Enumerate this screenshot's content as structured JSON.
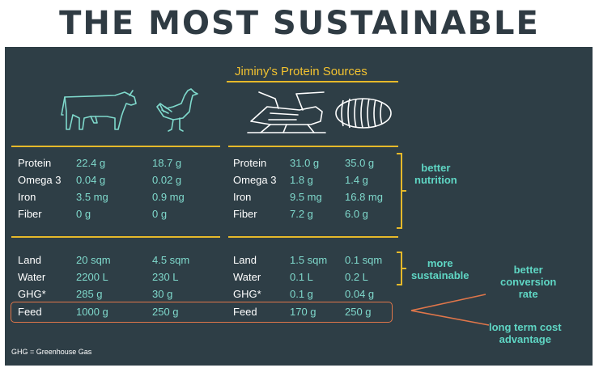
{
  "title": "THE MOST SUSTAINABLE",
  "header": "Jiminy's Protein Sources",
  "icons": [
    "cow-icon",
    "chicken-icon",
    "cricket-icon",
    "mealworm-icon"
  ],
  "nutrition": {
    "left": [
      {
        "label": "Protein",
        "cow": "22.4 g",
        "chicken": "18.7 g"
      },
      {
        "label": "Omega 3",
        "cow": "0.04 g",
        "chicken": "0.02 g"
      },
      {
        "label": "Iron",
        "cow": "3.5 mg",
        "chicken": "0.9 mg"
      },
      {
        "label": "Fiber",
        "cow": "0 g",
        "chicken": "0 g"
      }
    ],
    "right": [
      {
        "label": "Protein",
        "cricket": "31.0 g",
        "worm": "35.0 g"
      },
      {
        "label": "Omega 3",
        "cricket": "1.8 g",
        "worm": "1.4  g"
      },
      {
        "label": "Iron",
        "cricket": "9.5 mg",
        "worm": "16.8 mg"
      },
      {
        "label": "Fiber",
        "cricket": "7.2 g",
        "worm": "6.0 g"
      }
    ]
  },
  "sustainability": {
    "left": [
      {
        "label": "Land",
        "cow": "20 sqm",
        "chicken": "4.5 sqm"
      },
      {
        "label": "Water",
        "cow": "2200 L",
        "chicken": "230 L"
      },
      {
        "label": "GHG*",
        "cow": "285 g",
        "chicken": "30 g"
      },
      {
        "label": "Feed",
        "cow": "1000 g",
        "chicken": "250 g"
      }
    ],
    "right": [
      {
        "label": "Land",
        "cricket": "1.5 sqm",
        "worm": "0.1 sqm"
      },
      {
        "label": "Water",
        "cricket": "0.1 L",
        "worm": "0.2 L"
      },
      {
        "label": "GHG*",
        "cricket": "0.1 g",
        "worm": "0.04 g"
      },
      {
        "label": "Feed",
        "cricket": "170  g",
        "worm": "250 g"
      }
    ]
  },
  "notes": {
    "nutrition": "better\nnutrition",
    "sustainable": "more\nsustainable",
    "conversion": "better\nconversion\nrate",
    "cost": "long term cost\nadvantage"
  },
  "footnote": "GHG = Greenhouse Gas",
  "colors": {
    "panel": "#2e3e46",
    "accent": "#e6b92a",
    "teal": "#7fd9cc",
    "highlight": "#e0764a"
  }
}
